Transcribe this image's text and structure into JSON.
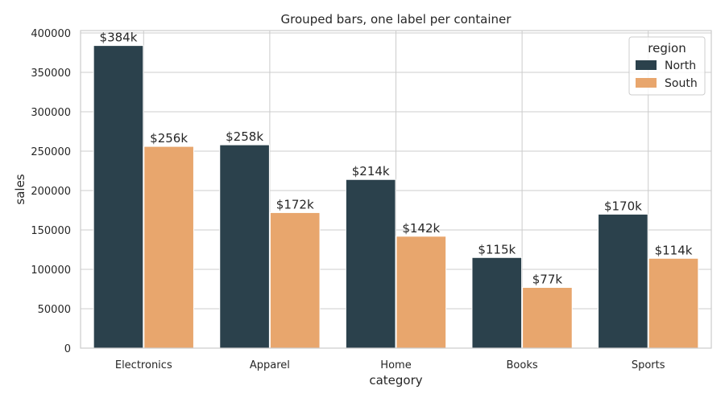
{
  "chart_data": {
    "type": "bar",
    "title": "Grouped bars, one label per container",
    "xlabel": "category",
    "ylabel": "sales",
    "categories": [
      "Electronics",
      "Apparel",
      "Home",
      "Books",
      "Sports"
    ],
    "series": [
      {
        "name": "North",
        "color": "#2b414c",
        "values": [
          384000,
          258000,
          214000,
          115000,
          170000
        ],
        "labels": [
          "$384k",
          "$258k",
          "$214k",
          "$115k",
          "$170k"
        ]
      },
      {
        "name": "South",
        "color": "#e8a66d",
        "values": [
          256000,
          172000,
          142000,
          77000,
          114000
        ],
        "labels": [
          "$256k",
          "$172k",
          "$142k",
          "$77k",
          "$114k"
        ]
      }
    ],
    "ylim": [
      0,
      403000
    ],
    "yticks": [
      0,
      50000,
      100000,
      150000,
      200000,
      250000,
      300000,
      350000,
      400000
    ],
    "grid": true,
    "legend": {
      "title": "region",
      "placement": "top-right"
    }
  }
}
